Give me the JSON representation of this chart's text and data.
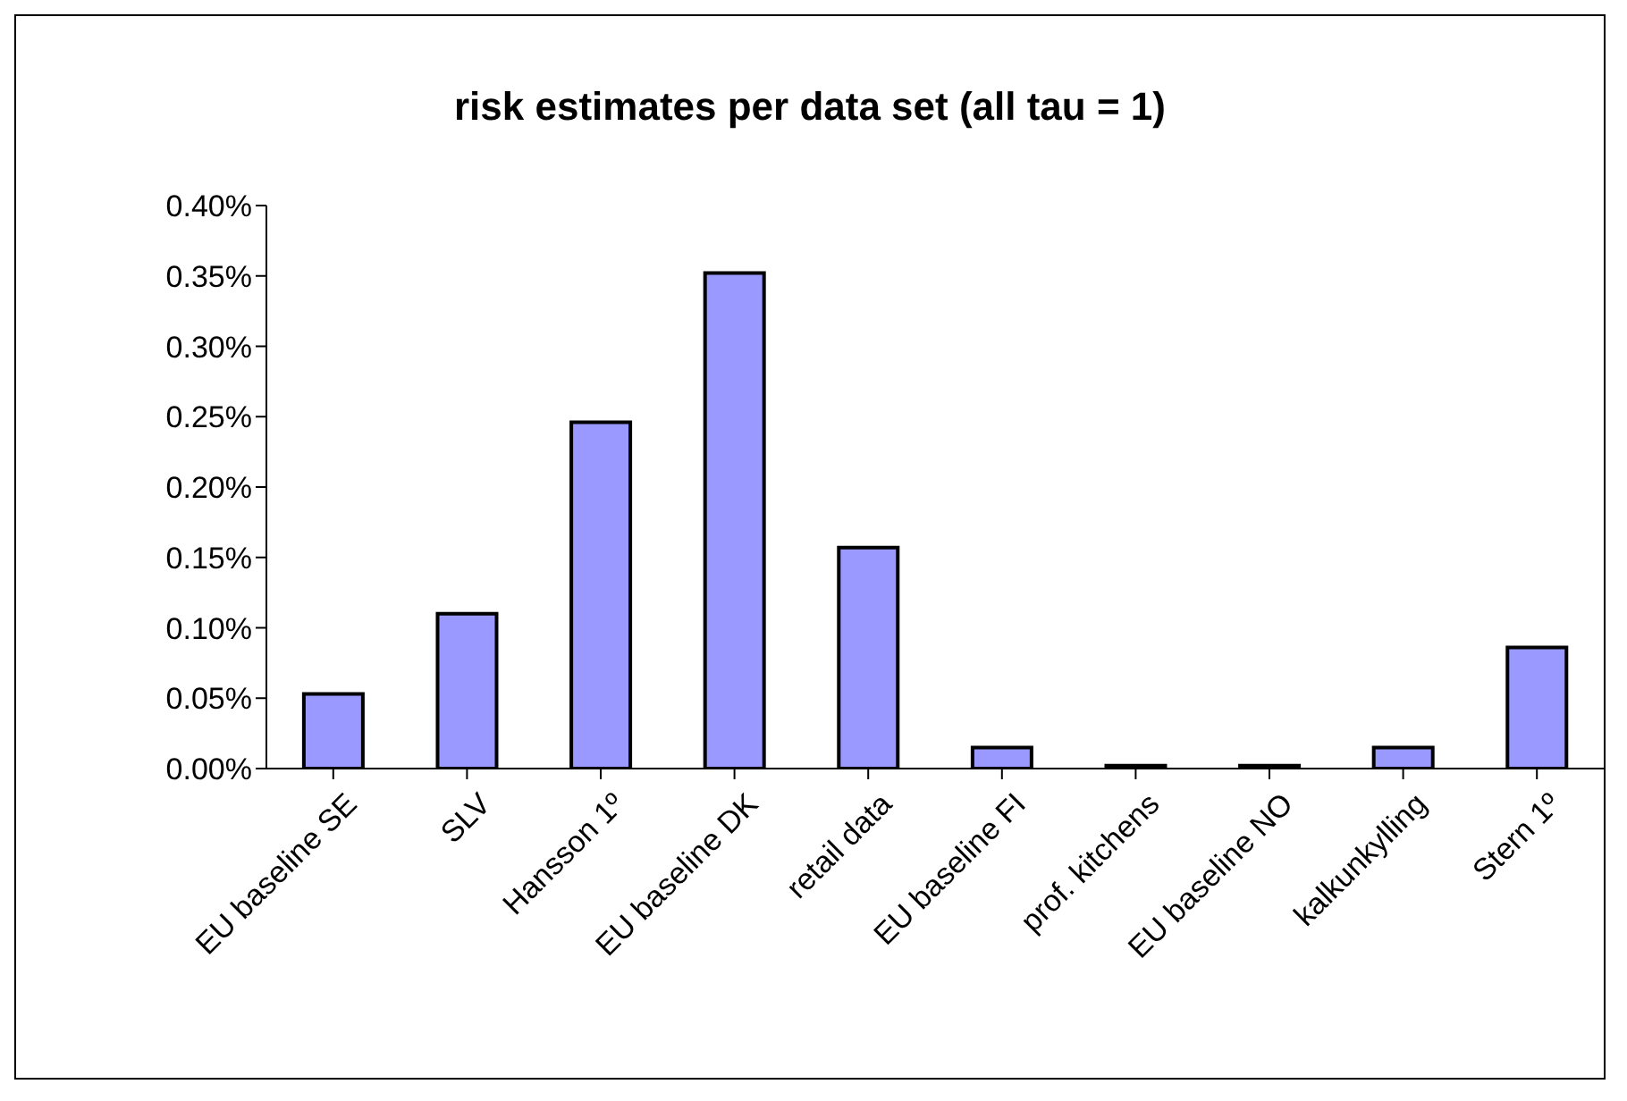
{
  "chart_data": {
    "type": "bar",
    "title": "risk estimates per data set (all tau = 1)",
    "categories": [
      "EU baseline SE",
      "SLV",
      "Hansson 1º",
      "EU baseline DK",
      "retail data",
      "EU baseline FI",
      "prof. kitchens",
      "EU baseline NO",
      "kalkunkylling",
      "Stern 1º"
    ],
    "values": [
      0.053,
      0.11,
      0.246,
      0.352,
      0.157,
      0.015,
      0.002,
      0.002,
      0.015,
      0.086
    ],
    "color": "#9999ff",
    "ylim": [
      0,
      0.4
    ],
    "yticks": [
      {
        "value": 0,
        "label": "0.00%"
      },
      {
        "value": 0.05,
        "label": "0.05%"
      },
      {
        "value": 0.1,
        "label": "0.10%"
      },
      {
        "value": 0.15,
        "label": "0.15%"
      },
      {
        "value": 0.2,
        "label": "0.20%"
      },
      {
        "value": 0.25,
        "label": "0.25%"
      },
      {
        "value": 0.3,
        "label": "0.30%"
      },
      {
        "value": 0.35,
        "label": "0.35%"
      },
      {
        "value": 0.4,
        "label": "0.40%"
      }
    ],
    "grid": false,
    "legend": false
  }
}
